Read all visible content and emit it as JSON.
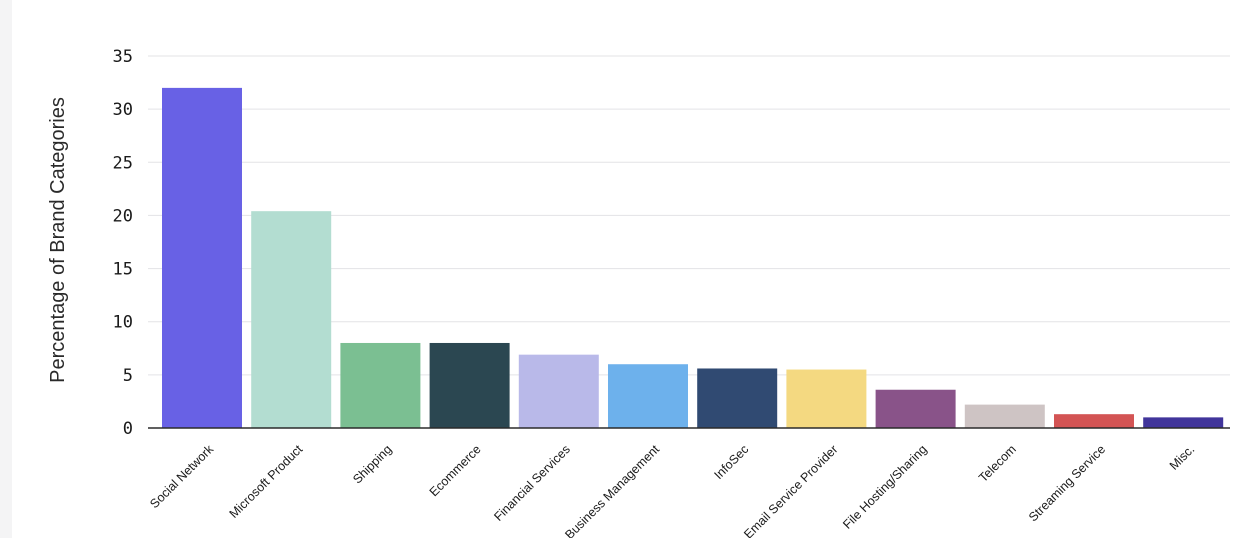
{
  "chart_data": {
    "type": "bar",
    "title": "",
    "xlabel": "",
    "ylabel": "Percentage of Brand Categories",
    "ylim": [
      0,
      35
    ],
    "yticks": [
      0,
      5,
      10,
      15,
      20,
      25,
      30,
      35
    ],
    "grid": true,
    "legend": "none",
    "categories": [
      "Social Network",
      "Microsoft Product",
      "Shipping",
      "Ecommerce",
      "Financial Services",
      "Business Management",
      "InfoSec",
      "Email Service Provider",
      "File Hosting/Sharing",
      "Telecom",
      "Streaming Service",
      "Misc."
    ],
    "values": [
      32.0,
      20.4,
      8.0,
      8.0,
      6.9,
      6.0,
      5.6,
      5.5,
      3.6,
      2.2,
      1.3,
      1.0
    ],
    "colors": [
      "#6861e5",
      "#b3ddd1",
      "#7bbf92",
      "#2b4751",
      "#b9b9e9",
      "#6db1ec",
      "#304a72",
      "#f4d981",
      "#895389",
      "#cec4c4",
      "#d35454",
      "#41359b"
    ]
  }
}
